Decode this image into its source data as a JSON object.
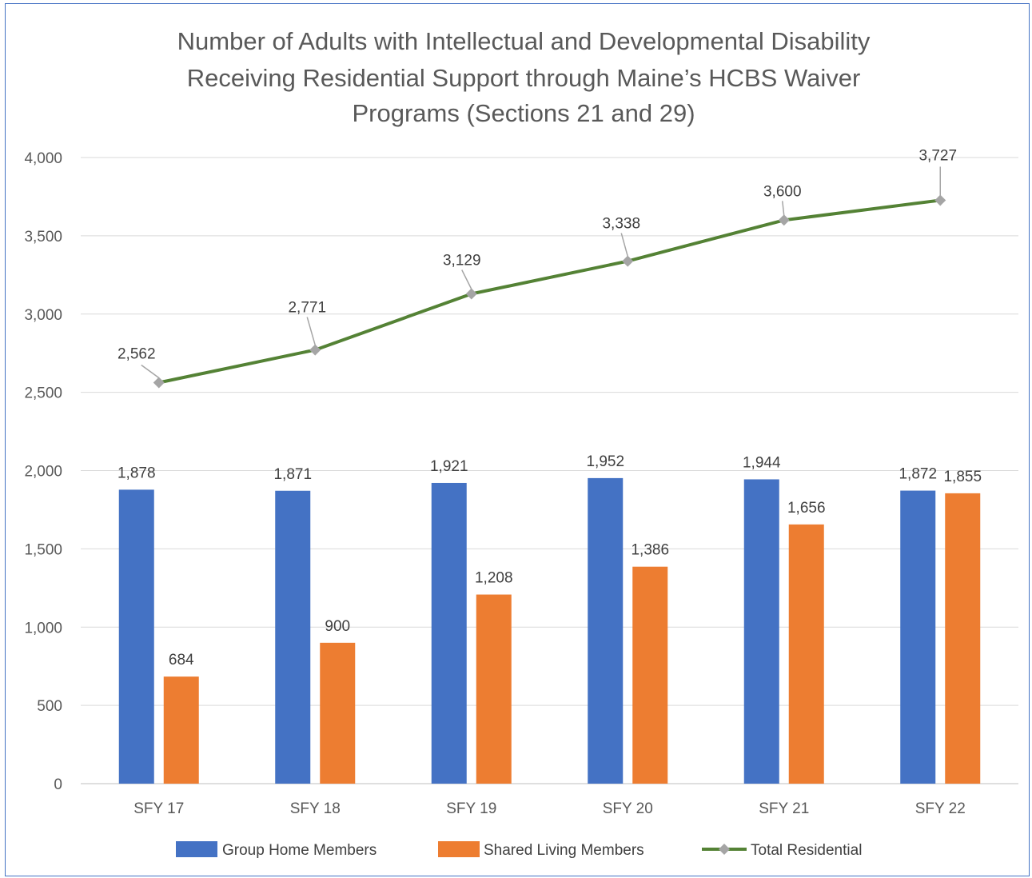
{
  "chart_data": {
    "type": "bar",
    "title_lines": [
      "Number of Adults with Intellectual and Developmental Disability",
      "Receiving Residential Support through Maine’s HCBS Waiver",
      "Programs (Sections 21 and 29)"
    ],
    "categories": [
      "SFY 17",
      "SFY 18",
      "SFY 19",
      "SFY 20",
      "SFY 21",
      "SFY 22"
    ],
    "series": [
      {
        "name": "Group Home Members",
        "kind": "bar",
        "color": "#4472c4",
        "values": [
          1878,
          1871,
          1921,
          1952,
          1944,
          1872
        ],
        "labels": [
          "1,878",
          "1,871",
          "1,921",
          "1,952",
          "1,944",
          "1,872"
        ]
      },
      {
        "name": "Shared Living Members",
        "kind": "bar",
        "color": "#ed7d31",
        "values": [
          684,
          900,
          1208,
          1386,
          1656,
          1855
        ],
        "labels": [
          "684",
          "900",
          "1,208",
          "1,386",
          "1,656",
          "1,855"
        ]
      },
      {
        "name": "Total Residential",
        "kind": "line",
        "color": "#548235",
        "marker_color": "#a5a5a5",
        "values": [
          2562,
          2771,
          3129,
          3338,
          3600,
          3727
        ],
        "labels": [
          "2,562",
          "2,771",
          "3,129",
          "3,338",
          "3,600",
          "3,727"
        ]
      }
    ],
    "y_ticks": [
      0,
      500,
      1000,
      1500,
      2000,
      2500,
      3000,
      3500,
      4000
    ],
    "y_tick_labels": [
      "0",
      "500",
      "1,000",
      "1,500",
      "2,000",
      "2,500",
      "3,000",
      "3,500",
      "4,000"
    ],
    "ylim": [
      0,
      4000
    ],
    "grid": true,
    "legend_position": "bottom"
  }
}
